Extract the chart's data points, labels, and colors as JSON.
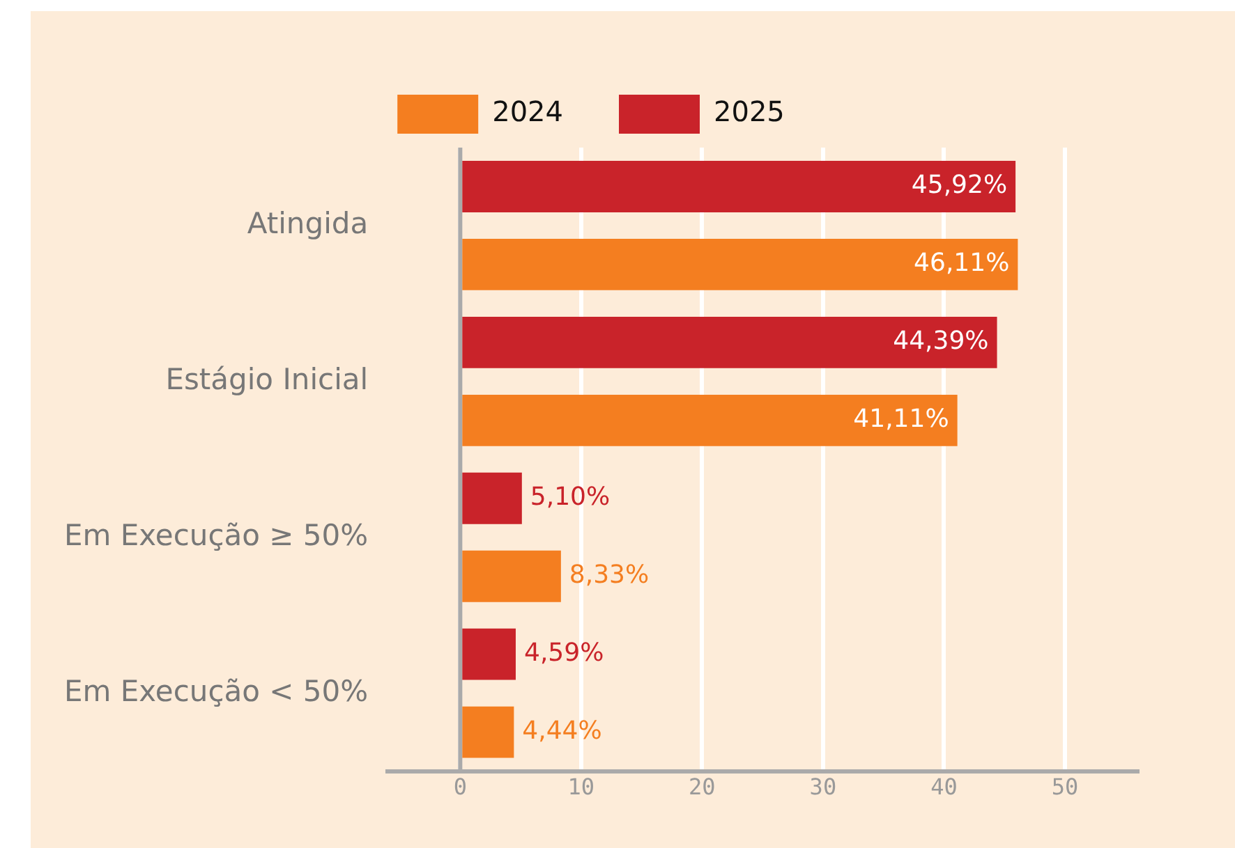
{
  "chart_data": {
    "type": "bar",
    "orientation": "horizontal",
    "categories": [
      "Atingida",
      "Estágio Inicial",
      "Em Execução ≥ 50%",
      "Em Execução < 50%"
    ],
    "series": [
      {
        "name": "2025",
        "color": "#c9232a",
        "values": [
          45.92,
          44.39,
          5.1,
          4.59
        ],
        "value_labels": [
          "45,92%",
          "44,39%",
          "5,10%",
          "4,59%"
        ]
      },
      {
        "name": "2024",
        "color": "#f47e20",
        "values": [
          46.11,
          41.11,
          8.33,
          4.44
        ],
        "value_labels": [
          "46,11%",
          "41,11%",
          "8,33%",
          "4,44%"
        ]
      }
    ],
    "xlim": [
      -6,
      56
    ],
    "xticks": [
      0,
      10,
      20,
      30,
      40,
      50
    ],
    "grid": "x",
    "legend": "top"
  }
}
